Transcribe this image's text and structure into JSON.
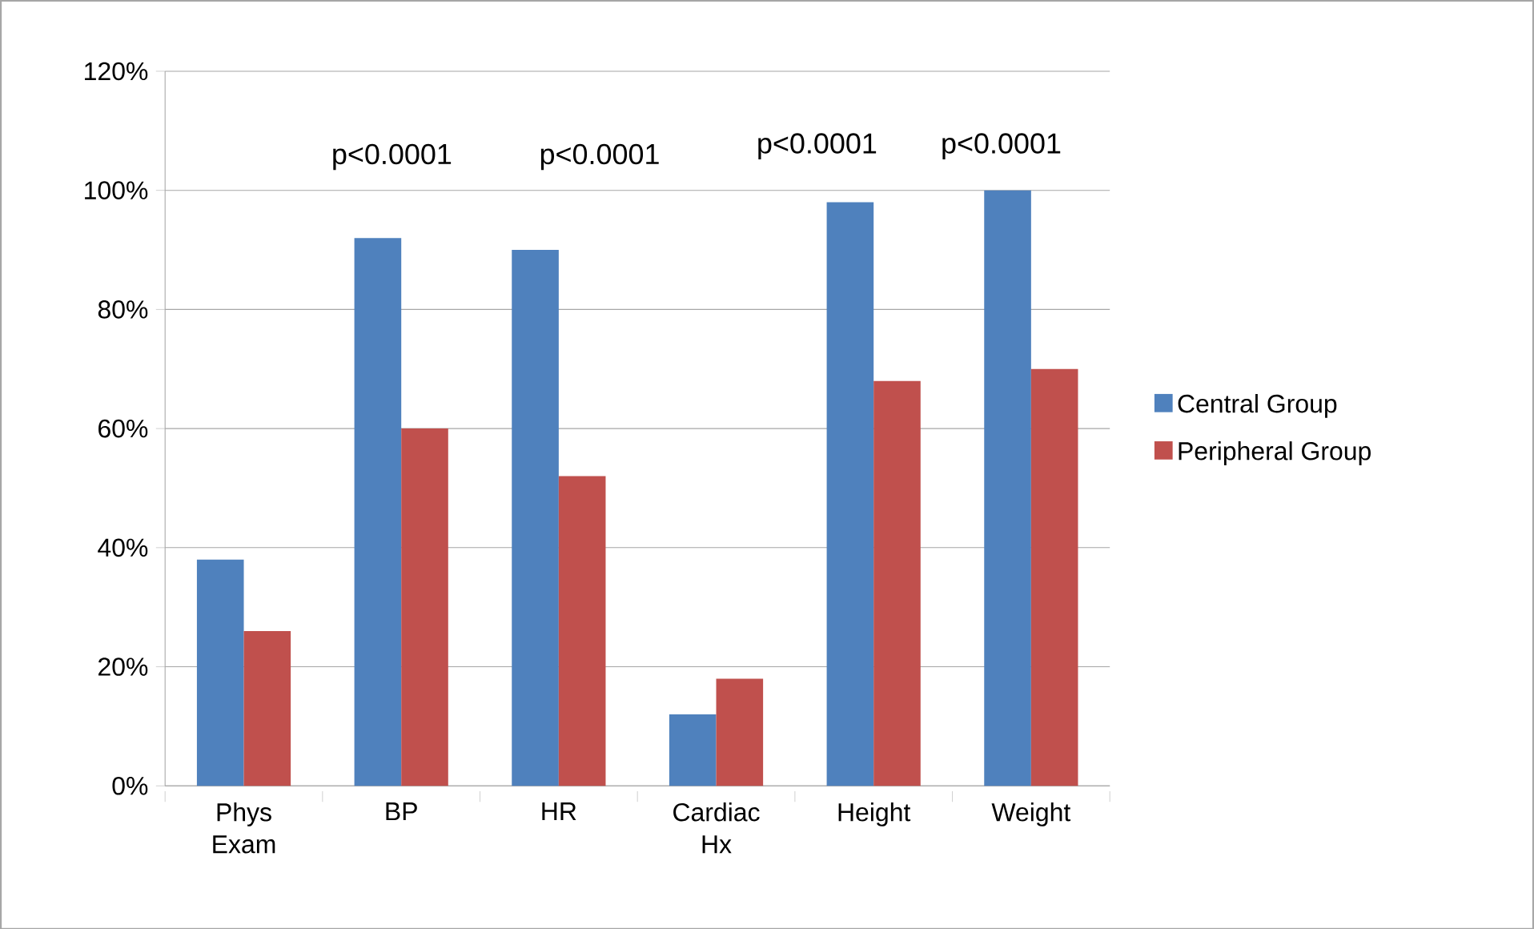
{
  "chart_data": {
    "type": "bar",
    "categories": [
      "Phys Exam",
      "BP",
      "HR",
      "Cardiac Hx",
      "Height",
      "Weight"
    ],
    "series": [
      {
        "name": "Central Group",
        "color": "#4f81bd",
        "values": [
          38,
          92,
          90,
          12,
          98,
          100
        ]
      },
      {
        "name": "Peripheral Group",
        "color": "#c0504d",
        "values": [
          26,
          60,
          52,
          18,
          68,
          70
        ]
      }
    ],
    "ylim": [
      0,
      120
    ],
    "yticks": [
      {
        "value": 0,
        "label": "0%"
      },
      {
        "value": 20,
        "label": "20%"
      },
      {
        "value": 40,
        "label": "40%"
      },
      {
        "value": 60,
        "label": "60%"
      },
      {
        "value": 80,
        "label": "80%"
      },
      {
        "value": 100,
        "label": "100%"
      },
      {
        "value": 120,
        "label": "120%"
      }
    ],
    "grid": "y",
    "legend": "right",
    "annotations": [
      "p<0.0001",
      "p<0.0001",
      "p<0.0001",
      "p<0.0001"
    ]
  }
}
